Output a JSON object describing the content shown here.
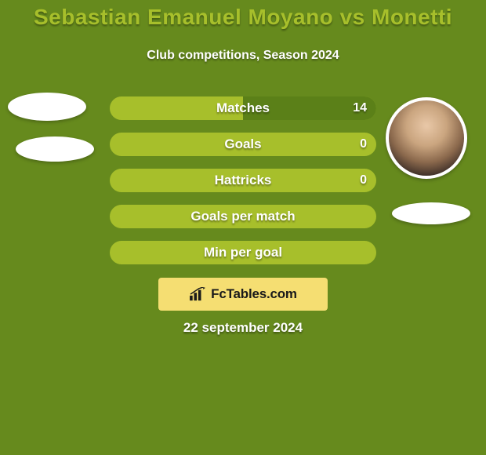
{
  "background_color": "#668a1d",
  "title": {
    "text": "Sebastian Emanuel Moyano vs Monetti",
    "color": "#a7bf2b",
    "fontsize": 28
  },
  "subtitle": {
    "text": "Club competitions, Season 2024"
  },
  "bars": {
    "bar_bg_color": "#a7bf2b",
    "right_fill_color": "#5b8018",
    "left_fill_color": "#5b8018",
    "items": [
      {
        "label": "Matches",
        "left_pct": 0,
        "right_pct": 100,
        "right_value": "14"
      },
      {
        "label": "Goals",
        "left_pct": 0,
        "right_pct": 0,
        "right_value": "0"
      },
      {
        "label": "Hattricks",
        "left_pct": 0,
        "right_pct": 0,
        "right_value": "0"
      },
      {
        "label": "Goals per match",
        "left_pct": 0,
        "right_pct": 0,
        "right_value": ""
      },
      {
        "label": "Min per goal",
        "left_pct": 0,
        "right_pct": 0,
        "right_value": ""
      }
    ]
  },
  "logo": {
    "box_color": "#f5de72",
    "text": "FcTables.com"
  },
  "date": "22 september 2024"
}
